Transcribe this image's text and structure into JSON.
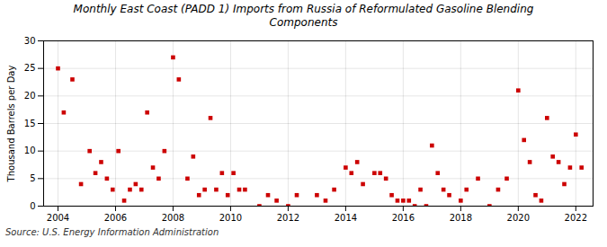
{
  "chart_data": {
    "type": "scatter",
    "title": "Monthly East Coast (PADD 1) Imports from Russia of Reformulated Gasoline Blending\nComponents",
    "ylabel": "Thousand Barrels per Day",
    "source": "Source: U.S. Energy Information Administration",
    "color": "#cc0000",
    "marker": "square",
    "grid": true,
    "xlim": [
      2003.5,
      2022.6
    ],
    "ylim": [
      0,
      30
    ],
    "xticks": [
      2004,
      2006,
      2008,
      2010,
      2012,
      2014,
      2016,
      2018,
      2020,
      2022
    ],
    "yticks": [
      0,
      5,
      10,
      15,
      20,
      25,
      30
    ],
    "x": [
      2004.0,
      2004.2,
      2004.5,
      2004.8,
      2005.1,
      2005.3,
      2005.5,
      2005.7,
      2005.9,
      2006.1,
      2006.3,
      2006.5,
      2006.7,
      2006.9,
      2007.1,
      2007.3,
      2007.5,
      2007.7,
      2008.0,
      2008.2,
      2008.5,
      2008.7,
      2008.9,
      2009.1,
      2009.3,
      2009.5,
      2009.7,
      2009.9,
      2010.1,
      2010.3,
      2010.5,
      2011.0,
      2011.3,
      2011.6,
      2012.0,
      2012.3,
      2013.0,
      2013.3,
      2013.6,
      2014.0,
      2014.2,
      2014.4,
      2014.6,
      2015.0,
      2015.2,
      2015.4,
      2015.6,
      2015.8,
      2016.0,
      2016.2,
      2016.4,
      2016.6,
      2016.8,
      2017.0,
      2017.2,
      2017.4,
      2017.6,
      2018.0,
      2018.2,
      2018.6,
      2019.0,
      2019.3,
      2019.6,
      2020.0,
      2020.2,
      2020.4,
      2020.6,
      2020.8,
      2021.0,
      2021.2,
      2021.4,
      2021.6,
      2021.8,
      2022.0,
      2022.2
    ],
    "values": [
      25,
      17,
      23,
      4,
      10,
      6,
      8,
      5,
      3,
      10,
      1,
      3,
      4,
      3,
      17,
      7,
      5,
      10,
      27,
      23,
      5,
      9,
      2,
      3,
      16,
      3,
      6,
      2,
      6,
      3,
      3,
      0,
      2,
      1,
      0,
      2,
      2,
      1,
      3,
      7,
      6,
      8,
      4,
      6,
      6,
      5,
      2,
      1,
      1,
      1,
      0,
      3,
      0,
      11,
      6,
      3,
      2,
      1,
      3,
      5,
      0,
      3,
      5,
      21,
      12,
      8,
      2,
      1,
      16,
      9,
      8,
      4,
      7,
      13,
      7
    ]
  }
}
